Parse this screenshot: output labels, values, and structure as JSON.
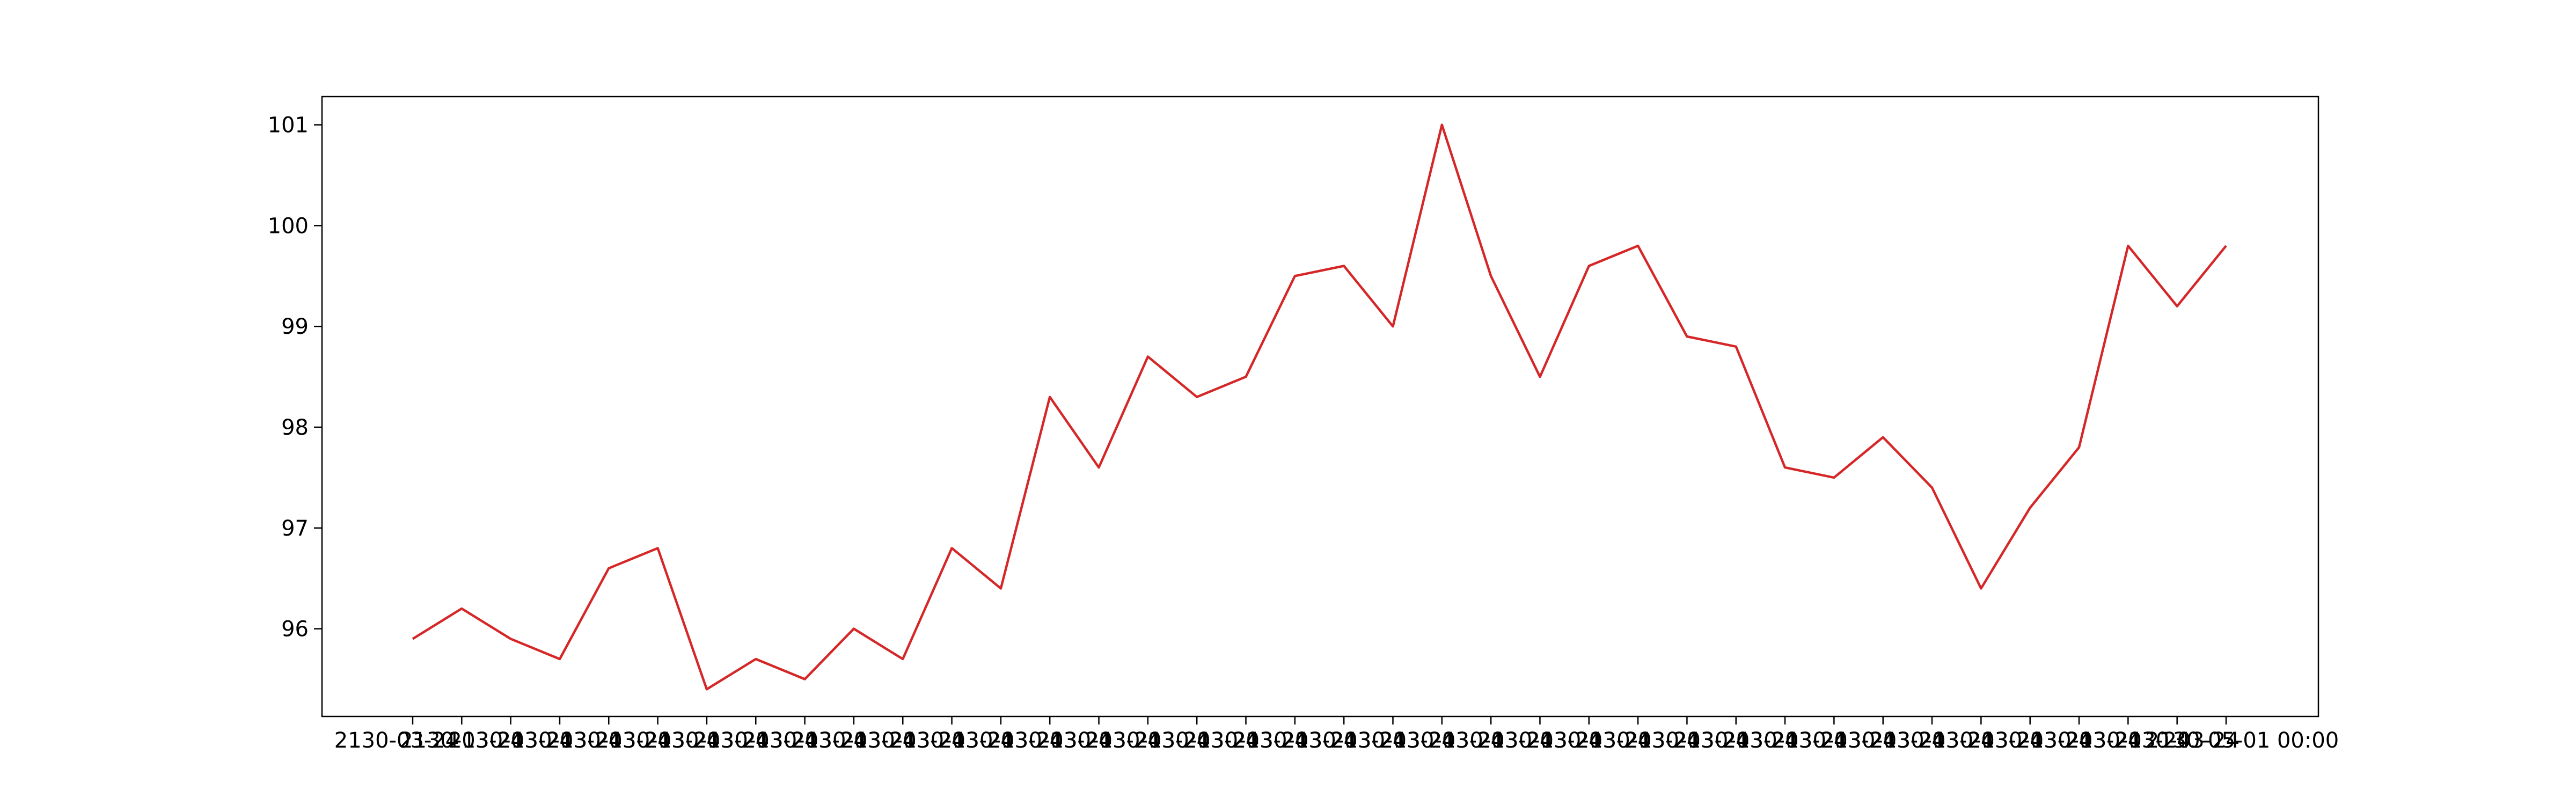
{
  "chart_data": {
    "type": "line",
    "title": "",
    "xlabel": "",
    "ylabel": "",
    "x_tick_labels_overlapping": true,
    "x_first_tick_label": "2130-03-24",
    "x_last_tick_label": "2130-05-01 00:00",
    "x_tick_count": 38,
    "ylim": [
      95.13,
      101.28
    ],
    "yticks": [
      96,
      97,
      98,
      99,
      100,
      101
    ],
    "grid": false,
    "series": [
      {
        "color": "#d62728",
        "values": [
          95.9,
          96.2,
          95.9,
          95.7,
          96.6,
          96.8,
          95.4,
          95.7,
          95.5,
          96.0,
          95.7,
          96.8,
          96.4,
          98.3,
          97.6,
          98.7,
          98.3,
          98.5,
          99.5,
          99.6,
          99.0,
          101.0,
          99.5,
          98.5,
          99.6,
          99.8,
          98.9,
          98.8,
          97.6,
          97.5,
          97.9,
          97.4,
          96.4,
          97.2,
          97.8,
          99.8,
          99.2,
          99.8
        ]
      }
    ]
  }
}
